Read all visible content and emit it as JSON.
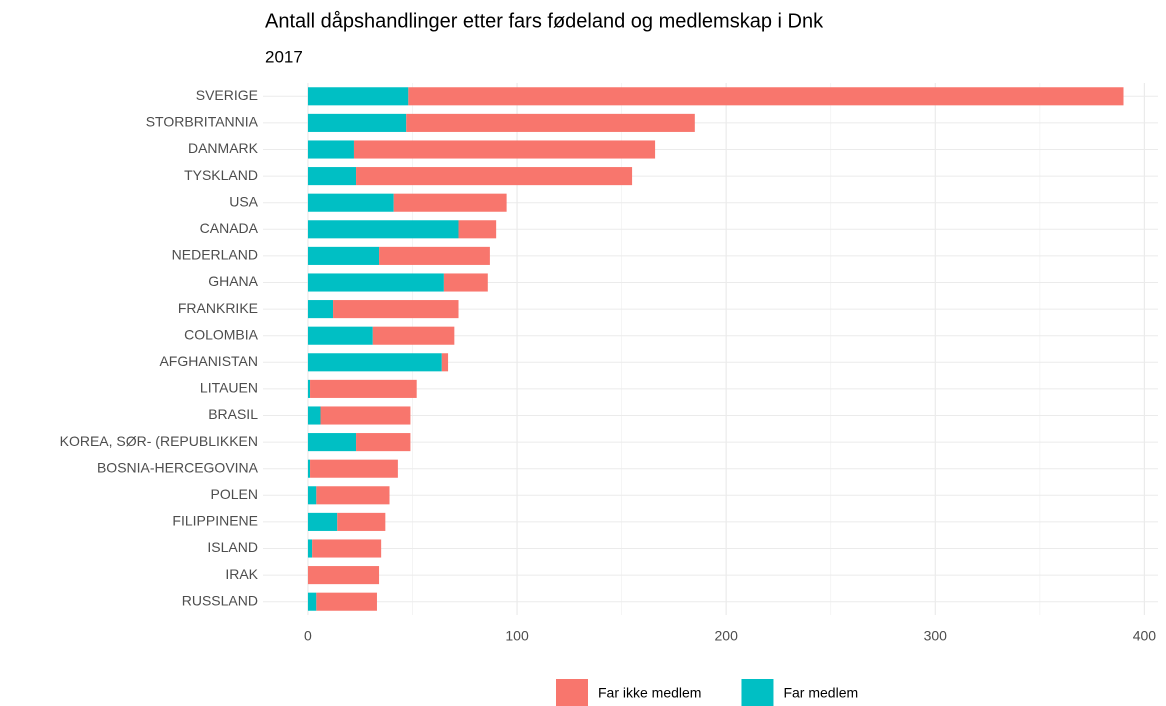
{
  "chart_data": {
    "type": "stacked_barh",
    "title": "Antall dåpshandlinger etter fars fødeland og medlemskap i Dnk",
    "subtitle": "2017",
    "categories": [
      "SVERIGE",
      "STORBRITANNIA",
      "DANMARK",
      "TYSKLAND",
      "USA",
      "CANADA",
      "NEDERLAND",
      "GHANA",
      "FRANKRIKE",
      "COLOMBIA",
      "AFGHANISTAN",
      "LITAUEN",
      "BRASIL",
      "KOREA, SØR- (REPUBLIKKEN",
      "BOSNIA-HERCEGOVINA",
      "POLEN",
      "FILIPPINENE",
      "ISLAND",
      "IRAK",
      "RUSSLAND"
    ],
    "series": [
      {
        "name": "Far ikke medlem",
        "color": "#f8766d",
        "values": [
          342,
          138,
          144,
          132,
          54,
          18,
          53,
          21,
          60,
          39,
          3,
          51,
          43,
          26,
          42,
          35,
          23,
          33,
          34,
          29
        ]
      },
      {
        "name": "Far medlem",
        "color": "#00bfc4",
        "values": [
          48,
          47,
          22,
          23,
          41,
          72,
          34,
          65,
          12,
          31,
          64,
          1,
          6,
          23,
          1,
          4,
          14,
          2,
          0,
          4
        ]
      }
    ],
    "xlim": [
      -21.5,
      406.5
    ],
    "xticks": [
      0,
      100,
      200,
      300,
      400
    ],
    "xticks_minor": [
      50,
      150,
      250,
      350
    ],
    "grid": true,
    "legend": "bottom"
  }
}
